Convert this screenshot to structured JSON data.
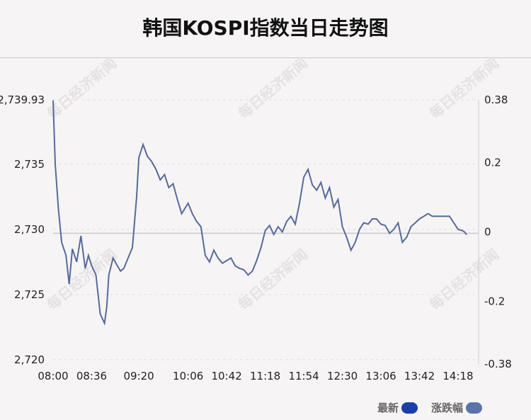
{
  "title": "韩国KOSPI指数当日走势图",
  "legend": [
    {
      "label": "最新",
      "color": "#1b3fa6"
    },
    {
      "label": "涨跌幅",
      "color": "#5a74a8"
    }
  ],
  "watermark": "每日经济新闻",
  "chart_data": {
    "type": "line",
    "line_color": "#556b9a",
    "base_line_color": "#c8c8c8",
    "grid": "dashed-horizontal",
    "y_left": {
      "min": 2719.67,
      "max": 2739.93,
      "ticks": [
        2739.93,
        2735,
        2730,
        2725,
        2720
      ],
      "tick_labels": [
        "2,739.93",
        "2,735",
        "2,730",
        "2,725",
        "2,720"
      ]
    },
    "y_right": {
      "min": -0.38,
      "max": 0.38,
      "ticks": [
        0.38,
        0.2,
        0,
        -0.2,
        -0.38
      ],
      "tick_labels": [
        "0.38",
        "0.2",
        "0",
        "-0.2",
        "-0.38"
      ]
    },
    "base_value": 2729.7,
    "x_ticks": [
      "08:00",
      "08:36",
      "09:20",
      "10:06",
      "10:42",
      "11:18",
      "11:54",
      "12:30",
      "13:06",
      "13:42",
      "14:18"
    ],
    "x": [
      "08:00",
      "08:02",
      "08:05",
      "08:08",
      "08:12",
      "08:15",
      "08:18",
      "08:22",
      "08:26",
      "08:30",
      "08:33",
      "08:36",
      "08:40",
      "08:44",
      "08:48",
      "08:50",
      "08:52",
      "08:56",
      "09:00",
      "09:03",
      "09:06",
      "09:10",
      "09:14",
      "09:18",
      "09:20",
      "09:24",
      "09:28",
      "09:32",
      "09:36",
      "09:40",
      "09:44",
      "09:48",
      "09:52",
      "09:56",
      "10:00",
      "10:03",
      "10:06",
      "10:10",
      "10:14",
      "10:18",
      "10:22",
      "10:26",
      "10:30",
      "10:34",
      "10:38",
      "10:42",
      "10:46",
      "10:50",
      "10:54",
      "10:58",
      "11:02",
      "11:06",
      "11:10",
      "11:14",
      "11:18",
      "11:22",
      "11:26",
      "11:30",
      "11:34",
      "11:38",
      "11:42",
      "11:46",
      "11:50",
      "11:54",
      "11:58",
      "12:02",
      "12:06",
      "12:10",
      "12:14",
      "12:18",
      "12:22",
      "12:26",
      "12:30",
      "12:34",
      "12:38",
      "12:42",
      "12:46",
      "12:50",
      "12:54",
      "12:58",
      "13:02",
      "13:06",
      "13:10",
      "13:14",
      "13:18",
      "13:22",
      "13:26",
      "13:30",
      "13:34",
      "13:38",
      "13:42",
      "13:46",
      "13:50",
      "13:54",
      "13:58",
      "14:02",
      "14:06",
      "14:10",
      "14:14",
      "14:18",
      "14:22",
      "14:24",
      "14:26"
    ],
    "y": [
      2739.9,
      2735.0,
      2731.5,
      2729.0,
      2728.0,
      2725.8,
      2728.5,
      2727.5,
      2729.5,
      2727.0,
      2728.0,
      2727.2,
      2726.5,
      2723.5,
      2722.8,
      2724.0,
      2726.5,
      2727.8,
      2727.2,
      2726.8,
      2727.0,
      2727.8,
      2728.6,
      2732.5,
      2735.5,
      2736.5,
      2735.6,
      2735.2,
      2734.6,
      2733.8,
      2734.2,
      2733.2,
      2733.5,
      2732.3,
      2731.2,
      2731.6,
      2732.0,
      2731.2,
      2730.6,
      2730.2,
      2728.0,
      2727.5,
      2728.4,
      2727.8,
      2727.4,
      2727.6,
      2727.8,
      2727.2,
      2727.0,
      2726.9,
      2726.5,
      2726.8,
      2727.6,
      2728.6,
      2729.9,
      2730.3,
      2729.6,
      2730.2,
      2729.8,
      2730.6,
      2731.0,
      2730.4,
      2732.0,
      2734.0,
      2734.6,
      2733.4,
      2733.0,
      2733.6,
      2732.4,
      2733.2,
      2731.7,
      2732.3,
      2730.2,
      2729.4,
      2728.4,
      2729.0,
      2730.0,
      2730.5,
      2730.4,
      2730.8,
      2730.8,
      2730.4,
      2730.3,
      2729.7,
      2730.0,
      2730.5,
      2729.0,
      2729.4,
      2730.2,
      2730.5,
      2730.8,
      2731.0,
      2731.2,
      2731.0,
      2731.0,
      2731.0,
      2731.0,
      2731.0,
      2730.5,
      2730.0,
      2729.9,
      2729.8,
      2729.6
    ]
  }
}
